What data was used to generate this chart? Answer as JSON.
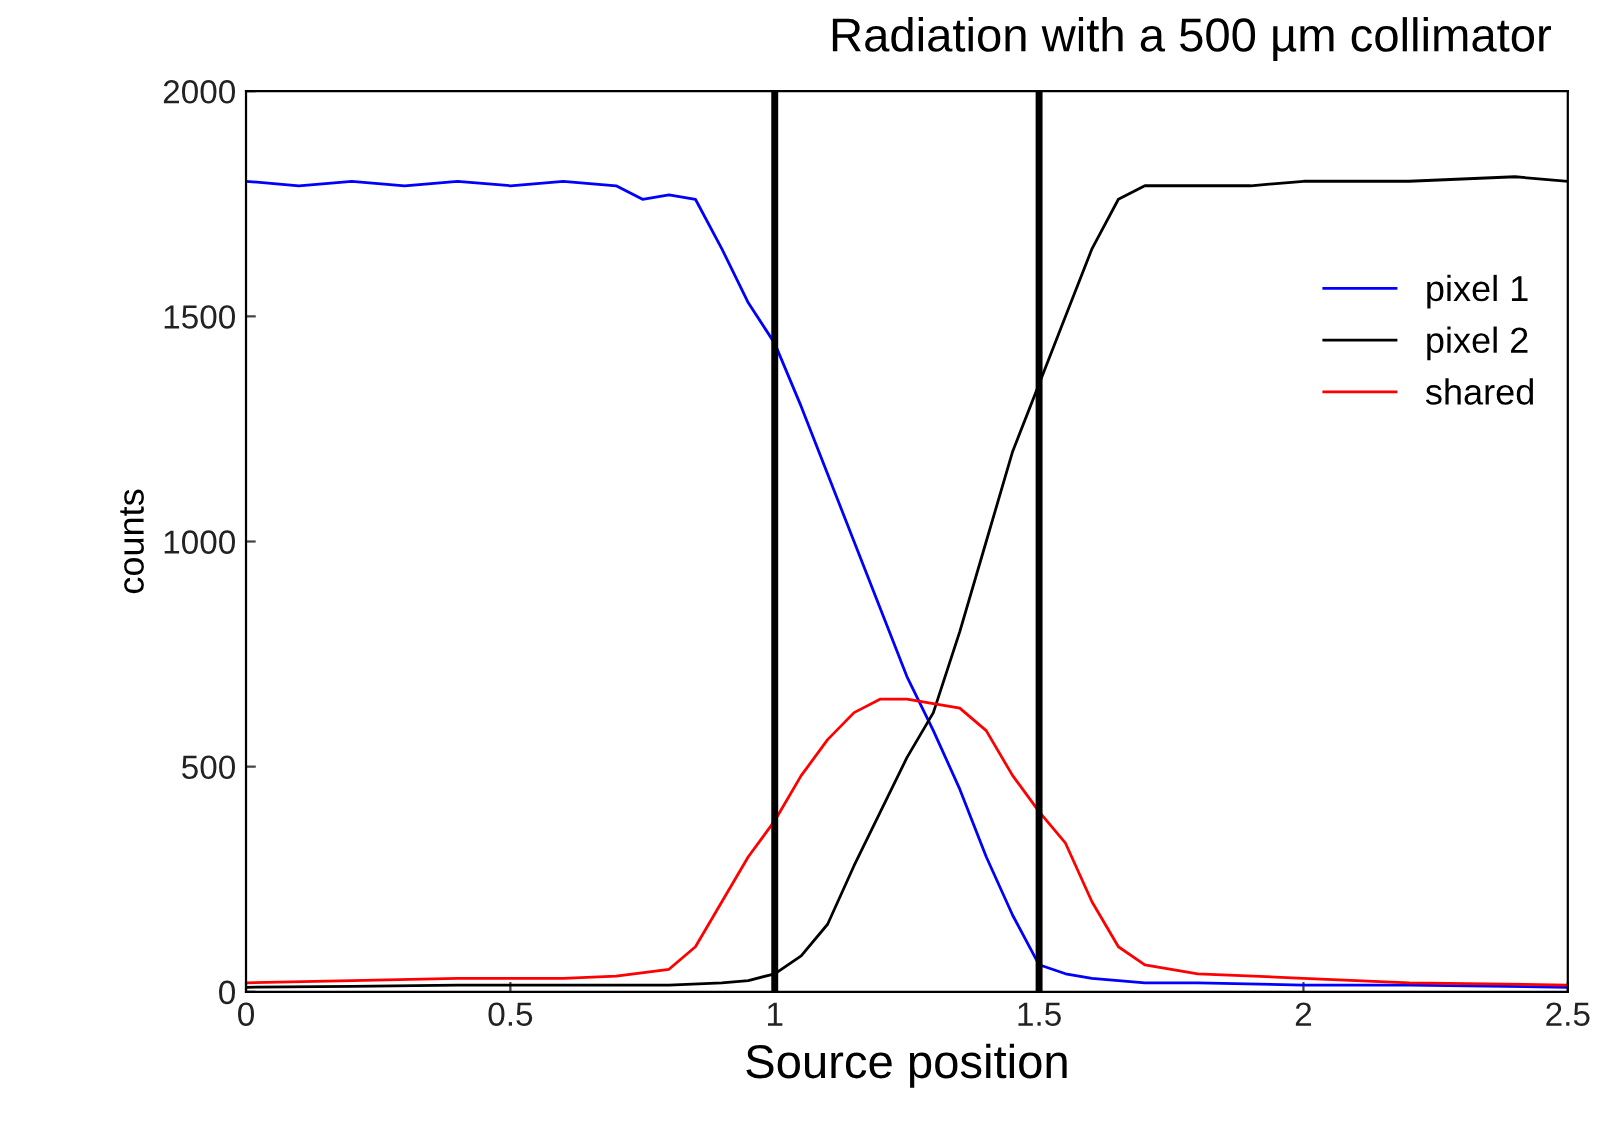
{
  "chart_data": {
    "type": "line",
    "title": "Radiation with a 500 µm collimator",
    "xlabel": "Source position",
    "ylabel": "counts",
    "xlim": [
      0,
      2.5
    ],
    "ylim": [
      0,
      2000
    ],
    "xticks": [
      0,
      0.5,
      1,
      1.5,
      2,
      2.5
    ],
    "yticks": [
      0,
      500,
      1000,
      1500,
      2000
    ],
    "grid": false,
    "legend": "right",
    "line_style": "solid",
    "series": [
      {
        "name": "pixel 1",
        "color": "#0000ff",
        "x": [
          0,
          0.1,
          0.2,
          0.3,
          0.4,
          0.5,
          0.6,
          0.7,
          0.75,
          0.8,
          0.85,
          0.9,
          0.95,
          1.0,
          1.05,
          1.1,
          1.15,
          1.2,
          1.25,
          1.3,
          1.35,
          1.4,
          1.45,
          1.5,
          1.55,
          1.6,
          1.7,
          1.8,
          2.0,
          2.2,
          2.5
        ],
        "values": [
          1800,
          1790,
          1800,
          1790,
          1800,
          1790,
          1800,
          1790,
          1760,
          1770,
          1760,
          1650,
          1530,
          1440,
          1300,
          1150,
          1000,
          850,
          700,
          580,
          450,
          300,
          170,
          60,
          40,
          30,
          20,
          20,
          15,
          15,
          10
        ]
      },
      {
        "name": "pixel 2",
        "color": "#000000",
        "x": [
          0,
          0.2,
          0.4,
          0.6,
          0.8,
          0.9,
          0.95,
          1.0,
          1.05,
          1.1,
          1.15,
          1.2,
          1.25,
          1.3,
          1.35,
          1.4,
          1.45,
          1.5,
          1.55,
          1.6,
          1.65,
          1.7,
          1.8,
          1.9,
          2.0,
          2.2,
          2.4,
          2.5
        ],
        "values": [
          10,
          12,
          15,
          15,
          15,
          20,
          25,
          40,
          80,
          150,
          280,
          400,
          520,
          620,
          800,
          1000,
          1200,
          1350,
          1500,
          1650,
          1760,
          1790,
          1790,
          1790,
          1800,
          1800,
          1810,
          1800
        ]
      },
      {
        "name": "shared",
        "color": "#ff0000",
        "x": [
          0,
          0.2,
          0.4,
          0.6,
          0.7,
          0.8,
          0.85,
          0.9,
          0.95,
          1.0,
          1.05,
          1.1,
          1.15,
          1.2,
          1.25,
          1.3,
          1.35,
          1.4,
          1.45,
          1.5,
          1.55,
          1.6,
          1.65,
          1.7,
          1.8,
          2.0,
          2.2,
          2.5
        ],
        "values": [
          20,
          25,
          30,
          30,
          35,
          50,
          100,
          200,
          300,
          380,
          480,
          560,
          620,
          650,
          650,
          640,
          630,
          580,
          480,
          400,
          330,
          200,
          100,
          60,
          40,
          30,
          20,
          15
        ]
      }
    ],
    "ref_lines": [
      {
        "axis": "x",
        "value": 1,
        "color": "#000000"
      },
      {
        "axis": "x",
        "value": 1.5,
        "color": "#000000"
      }
    ]
  }
}
